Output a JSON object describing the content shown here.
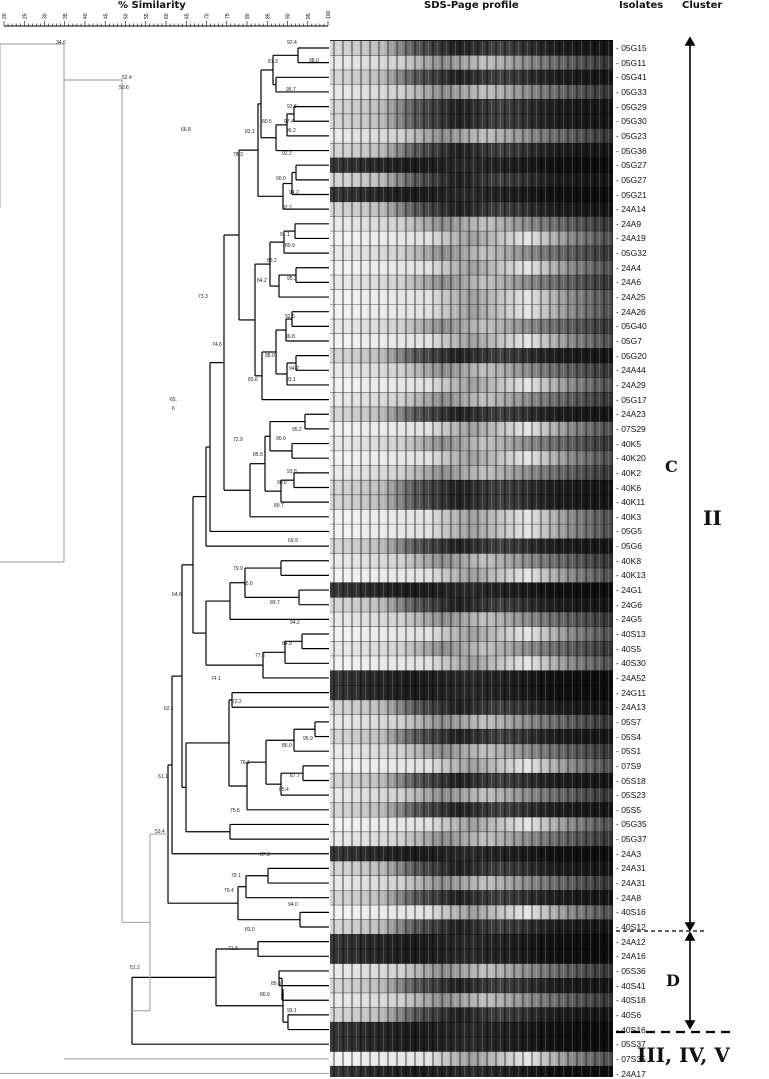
{
  "header": {
    "similarity": "% Similarity",
    "profile": "SDS-Page profile",
    "isolates_col": "Isolates",
    "cluster_col": "Cluster"
  },
  "scale_ticks": [
    "20",
    "25",
    "30",
    "35",
    "40",
    "45",
    "50",
    "55",
    "60",
    "65",
    "70",
    "75",
    "80",
    "85",
    "90",
    "95",
    "100"
  ],
  "isolates": [
    "05G15",
    "05G11",
    "05G41",
    "05G33",
    "05G29",
    "05G30",
    "05G23",
    "05G36",
    "05G27",
    "05G27",
    "05G21",
    "24A14",
    "24A9",
    "24A19",
    "05G32",
    "24A4",
    "24A6",
    "24A25",
    "24A26",
    "05G40",
    "05G7",
    "05G20",
    "24A44",
    "24A29",
    "05G17",
    "24A23",
    "07S29",
    "40K5",
    "40K20",
    "40K2",
    "40K6",
    "40K11",
    "40K3",
    "05G5",
    "05G6",
    "40K8",
    "40K13",
    "24G1",
    "24G6",
    "24G5",
    "40S13",
    "40S5",
    "40S30",
    "24A52",
    "24G11",
    "24A13",
    "05S7",
    "05S4",
    "05S1",
    "07S9",
    "05S18",
    "05S23",
    "05S5",
    "05G35",
    "05G37",
    "24A3",
    "24A31",
    "24A31",
    "24A8",
    "40S16",
    "40S12",
    "24A12",
    "24A16",
    "05S36",
    "40S41",
    "40S18",
    "40S6",
    "40S16",
    "05S37",
    "07S35",
    "24A17"
  ],
  "node_values": [
    "34.6",
    "52.4",
    "50.6",
    "92.4",
    "98.0",
    "87.3",
    "95.7",
    "93.8",
    "97.4",
    "96.2",
    "80.5",
    "66.8",
    "83.1",
    "78.3",
    "92.2",
    "90.0",
    "94.2",
    "92.2",
    "91.1",
    "89.9",
    "88.2",
    "95.3",
    "84.2",
    "73.3",
    "92.5",
    "89.8",
    "74.6",
    "88.0",
    "94.2",
    "93.1",
    "83.6",
    "65.",
    "6",
    "72.9",
    "95.2",
    "90.0",
    "85.5",
    "93.8",
    "90.6",
    "89.7",
    "69.9",
    "79.9",
    "75.6",
    "64.6",
    "89.7",
    "94.2",
    "84.9",
    "77.6",
    "74.1",
    "72.2",
    "62.1",
    "95.9",
    "85.0",
    "79.1",
    "87.7",
    "85.4",
    "61.1",
    "75.6",
    "53.4",
    "87.3",
    "79.1",
    "79.4",
    "94.0",
    "83.0",
    "71.8",
    "89.8",
    "86.9",
    "93.1",
    "51.2"
  ],
  "clusters": {
    "sub_c": "C",
    "sub_d": "D",
    "main": "II",
    "others": "III, IV, V"
  }
}
